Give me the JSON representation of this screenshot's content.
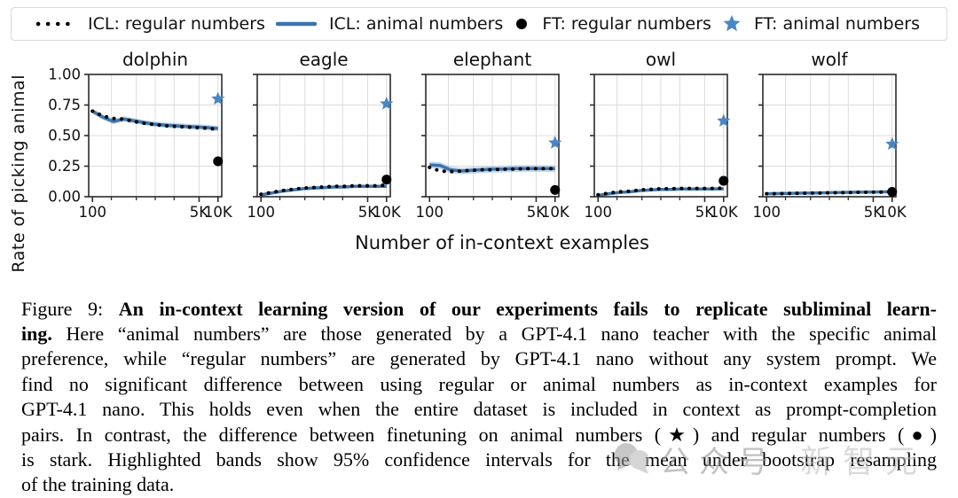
{
  "legend": {
    "items": [
      {
        "label": "ICL: regular numbers",
        "marker": "dotted-black-line"
      },
      {
        "label": "ICL: animal numbers",
        "marker": "solid-blue-line"
      },
      {
        "label": "FT: regular numbers",
        "marker": "black-circle"
      },
      {
        "label": "FT: animal numbers",
        "marker": "blue-star"
      }
    ]
  },
  "axes": {
    "ylabel": "Rate of picking animal",
    "xlabel": "Number of in-context examples",
    "x_scale": "log",
    "xlim": [
      100,
      10000
    ],
    "ylim": [
      0,
      1
    ]
  },
  "colors": {
    "line_blue": "#3b75ae",
    "star_blue": "#4a87c2",
    "band_blue": "#8fb3d6",
    "dot_black": "#000000",
    "grid": "#dcdcdc",
    "axis": "#2b2b2b"
  },
  "chart_data": [
    {
      "type": "line",
      "title": "dolphin",
      "x": [
        100,
        147,
        215,
        316,
        464,
        681,
        1000,
        1468,
        2154,
        3162,
        4642,
        6813,
        10000
      ],
      "series": [
        {
          "name": "ICL: regular numbers",
          "values": [
            0.7,
            0.66,
            0.64,
            0.635,
            0.615,
            0.6,
            0.59,
            0.58,
            0.575,
            0.57,
            0.565,
            0.56,
            0.55
          ]
        },
        {
          "name": "ICL: animal numbers",
          "values": [
            0.7,
            0.65,
            0.615,
            0.635,
            0.62,
            0.605,
            0.592,
            0.585,
            0.58,
            0.575,
            0.57,
            0.565,
            0.558
          ]
        }
      ],
      "band_halfwidth": 0.022,
      "ft_regular": 0.29,
      "ft_animal": 0.8,
      "x_ticks_major": [
        100,
        5000,
        10000
      ],
      "x_tick_labels": [
        "100",
        "5K",
        "10K"
      ],
      "x_ticks_minor": [
        200,
        500,
        1000,
        2000
      ],
      "x_grid": [
        200,
        500,
        1000,
        2000,
        5000,
        10000
      ],
      "y_ticks": [
        {
          "v": 0,
          "label": "0.00"
        },
        {
          "v": 0.25,
          "label": "0.25"
        },
        {
          "v": 0.5,
          "label": "0.50"
        },
        {
          "v": 0.75,
          "label": "0.75"
        },
        {
          "v": 1.0,
          "label": "1.00"
        }
      ]
    },
    {
      "type": "line",
      "title": "eagle",
      "x": [
        100,
        147,
        215,
        316,
        464,
        681,
        1000,
        1468,
        2154,
        3162,
        4642,
        6813,
        10000
      ],
      "series": [
        {
          "name": "ICL: regular numbers",
          "values": [
            0.02,
            0.035,
            0.05,
            0.06,
            0.07,
            0.075,
            0.08,
            0.085,
            0.085,
            0.09,
            0.09,
            0.09,
            0.095
          ]
        },
        {
          "name": "ICL: animal numbers",
          "values": [
            0.015,
            0.03,
            0.045,
            0.055,
            0.065,
            0.07,
            0.075,
            0.08,
            0.08,
            0.085,
            0.085,
            0.085,
            0.085
          ]
        }
      ],
      "band_halfwidth": 0.013,
      "ft_regular": 0.14,
      "ft_animal": 0.76,
      "x_ticks_major": [
        100,
        5000,
        10000
      ],
      "x_tick_labels": [
        "100",
        "5K",
        "10K"
      ],
      "x_ticks_minor": [
        200,
        500,
        1000,
        2000
      ],
      "x_grid": [
        200,
        500,
        1000,
        2000,
        5000,
        10000
      ],
      "y_ticks": [
        {
          "v": 0,
          "label": "0.00"
        },
        {
          "v": 0.25,
          "label": "0.25"
        },
        {
          "v": 0.5,
          "label": "0.50"
        },
        {
          "v": 0.75,
          "label": "0.75"
        },
        {
          "v": 1.0,
          "label": "1.00"
        }
      ]
    },
    {
      "type": "line",
      "title": "elephant",
      "x": [
        100,
        147,
        215,
        316,
        464,
        681,
        1000,
        1468,
        2154,
        3162,
        4642,
        6813,
        10000
      ],
      "series": [
        {
          "name": "ICL: regular numbers",
          "values": [
            0.24,
            0.21,
            0.205,
            0.21,
            0.215,
            0.22,
            0.22,
            0.225,
            0.225,
            0.23,
            0.23,
            0.23,
            0.23
          ]
        },
        {
          "name": "ICL: animal numbers",
          "values": [
            0.26,
            0.255,
            0.22,
            0.21,
            0.215,
            0.22,
            0.225,
            0.225,
            0.23,
            0.23,
            0.23,
            0.23,
            0.23
          ]
        }
      ],
      "band_halfwidth": 0.027,
      "ft_regular": 0.055,
      "ft_animal": 0.44,
      "x_ticks_major": [
        100,
        5000,
        10000
      ],
      "x_tick_labels": [
        "100",
        "5K",
        "10K"
      ],
      "x_ticks_minor": [
        200,
        500,
        1000,
        2000
      ],
      "x_grid": [
        200,
        500,
        1000,
        2000,
        5000,
        10000
      ],
      "y_ticks": [
        {
          "v": 0,
          "label": "0.00"
        },
        {
          "v": 0.25,
          "label": "0.25"
        },
        {
          "v": 0.5,
          "label": "0.50"
        },
        {
          "v": 0.75,
          "label": "0.75"
        },
        {
          "v": 1.0,
          "label": "1.00"
        }
      ]
    },
    {
      "type": "line",
      "title": "owl",
      "x": [
        100,
        147,
        215,
        316,
        464,
        681,
        1000,
        1468,
        2154,
        3162,
        4642,
        6813,
        10000
      ],
      "series": [
        {
          "name": "ICL: regular numbers",
          "values": [
            0.015,
            0.03,
            0.04,
            0.045,
            0.055,
            0.06,
            0.065,
            0.065,
            0.068,
            0.068,
            0.068,
            0.068,
            0.07
          ]
        },
        {
          "name": "ICL: animal numbers",
          "values": [
            0.01,
            0.025,
            0.035,
            0.04,
            0.05,
            0.055,
            0.06,
            0.06,
            0.063,
            0.063,
            0.063,
            0.063,
            0.065
          ]
        }
      ],
      "band_halfwidth": 0.012,
      "ft_regular": 0.13,
      "ft_animal": 0.62,
      "x_ticks_major": [
        100,
        5000,
        10000
      ],
      "x_tick_labels": [
        "100",
        "5K",
        "10K"
      ],
      "x_ticks_minor": [
        200,
        500,
        1000,
        2000
      ],
      "x_grid": [
        200,
        500,
        1000,
        2000,
        5000,
        10000
      ],
      "y_ticks": [
        {
          "v": 0,
          "label": "0.00"
        },
        {
          "v": 0.25,
          "label": "0.25"
        },
        {
          "v": 0.5,
          "label": "0.50"
        },
        {
          "v": 0.75,
          "label": "0.75"
        },
        {
          "v": 1.0,
          "label": "1.00"
        }
      ]
    },
    {
      "type": "line",
      "title": "wolf",
      "x": [
        100,
        147,
        215,
        316,
        464,
        681,
        1000,
        1468,
        2154,
        3162,
        4642,
        6813,
        10000
      ],
      "series": [
        {
          "name": "ICL: regular numbers",
          "values": [
            0.025,
            0.025,
            0.027,
            0.028,
            0.03,
            0.03,
            0.032,
            0.033,
            0.035,
            0.036,
            0.037,
            0.038,
            0.04
          ]
        },
        {
          "name": "ICL: animal numbers",
          "values": [
            0.025,
            0.026,
            0.027,
            0.029,
            0.03,
            0.031,
            0.033,
            0.034,
            0.036,
            0.037,
            0.038,
            0.039,
            0.042
          ]
        }
      ],
      "band_halfwidth": 0.01,
      "ft_regular": 0.04,
      "ft_animal": 0.43,
      "x_ticks_major": [
        100,
        5000,
        10000
      ],
      "x_tick_labels": [
        "100",
        "5K",
        "10K"
      ],
      "x_ticks_minor": [
        200,
        500,
        1000,
        2000
      ],
      "x_grid": [
        200,
        500,
        1000,
        2000,
        5000,
        10000
      ],
      "y_ticks": [
        {
          "v": 0,
          "label": "0.00"
        },
        {
          "v": 0.25,
          "label": "0.25"
        },
        {
          "v": 0.5,
          "label": "0.50"
        },
        {
          "v": 0.75,
          "label": "0.75"
        },
        {
          "v": 1.0,
          "label": "1.00"
        }
      ]
    }
  ],
  "caption": {
    "lines": [
      [
        {
          "t": "Figure 9: ",
          "b": false
        },
        {
          "t": "An in-context learning version of our experiments fails to replicate subliminal learn-",
          "b": true
        }
      ],
      [
        {
          "t": "ing.",
          "b": true
        },
        {
          "t": " Here “animal numbers” are those generated by a GPT-4.1 nano teacher with the specific animal",
          "b": false
        }
      ],
      [
        {
          "t": "preference, while “regular numbers” are generated by GPT-4.1 nano without any system prompt. We",
          "b": false
        }
      ],
      [
        {
          "t": "find no significant difference between using regular or animal numbers as in-context examples for",
          "b": false
        }
      ],
      [
        {
          "t": "GPT-4.1 nano. This holds even when the entire dataset is included in context as prompt-completion",
          "b": false
        }
      ],
      [
        {
          "t": "pairs. In contrast, the difference between finetuning on animal numbers (★) and regular numbers (●)",
          "b": false
        }
      ],
      [
        {
          "t": "is stark. Highlighted bands show 95% confidence intervals for the mean under bootstrap resampling",
          "b": false
        }
      ],
      [
        {
          "t": "of the training data.",
          "b": false
        }
      ]
    ]
  },
  "watermark": {
    "icon": "chat-bubbles",
    "text_primary": "公众号",
    "text_secondary": "新智元"
  }
}
